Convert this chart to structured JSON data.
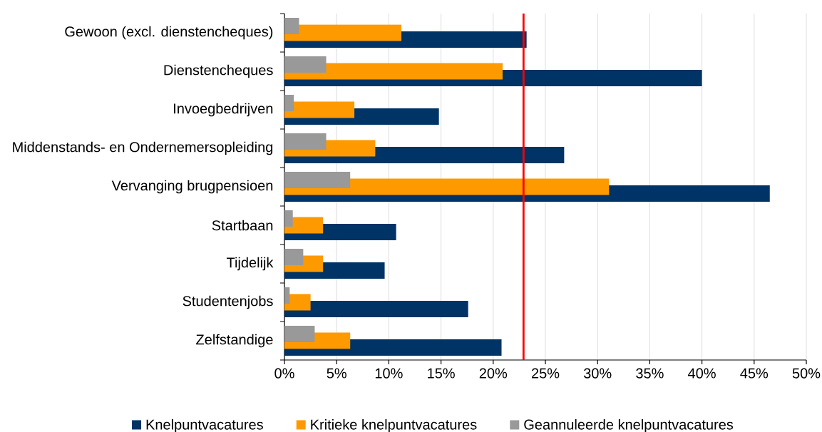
{
  "chart_data": {
    "type": "bar",
    "orientation": "horizontal",
    "categories": [
      "Gewoon (excl. dienstencheques)",
      "Dienstencheques",
      "Invoegbedrijven",
      "Middenstands- en Ondernemersopleiding",
      "Vervanging brugpensioen",
      "Startbaan",
      "Tijdelijk",
      "Studentenjobs",
      "Zelfstandige"
    ],
    "series": [
      {
        "name": "Knelpuntvacatures",
        "color": "#003366",
        "values": [
          23.2,
          40.0,
          14.8,
          26.8,
          46.5,
          10.7,
          9.6,
          17.6,
          20.8
        ]
      },
      {
        "name": "Kritieke knelpuntvacatures",
        "color": "#ff9900",
        "values": [
          11.2,
          20.9,
          6.7,
          8.7,
          31.1,
          3.7,
          3.7,
          2.5,
          6.3
        ]
      },
      {
        "name": "Geannuleerde knelpuntvacatures",
        "color": "#999999",
        "values": [
          1.4,
          4.0,
          0.9,
          4.0,
          6.3,
          0.8,
          1.8,
          0.5,
          2.9
        ]
      }
    ],
    "xlim": [
      0,
      50
    ],
    "xticks": [
      {
        "value": 0,
        "label": "0%"
      },
      {
        "value": 5,
        "label": "5%"
      },
      {
        "value": 10,
        "label": "10%"
      },
      {
        "value": 15,
        "label": "15%"
      },
      {
        "value": 20,
        "label": "20%"
      },
      {
        "value": 25,
        "label": "25%"
      },
      {
        "value": 30,
        "label": "30%"
      },
      {
        "value": 35,
        "label": "35%"
      },
      {
        "value": 40,
        "label": "40%"
      },
      {
        "value": 45,
        "label": "45%"
      },
      {
        "value": 50,
        "label": "50%"
      }
    ],
    "grid": "x",
    "legend": "bottom",
    "ref_lines": [
      {
        "axis": "x",
        "value": 22.9,
        "color": "#ff0000"
      }
    ]
  }
}
